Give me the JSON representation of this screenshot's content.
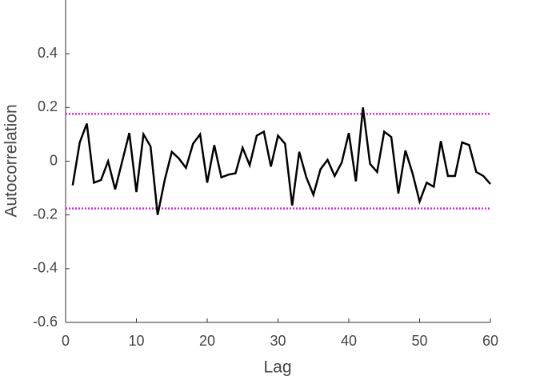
{
  "chart_data": {
    "type": "line",
    "xlabel": "Lag",
    "ylabel": "Autocorrelation",
    "x": [
      1,
      2,
      3,
      4,
      5,
      6,
      7,
      8,
      9,
      10,
      11,
      12,
      13,
      14,
      15,
      16,
      17,
      18,
      19,
      20,
      21,
      22,
      23,
      24,
      25,
      26,
      27,
      28,
      29,
      30,
      31,
      32,
      33,
      34,
      35,
      36,
      37,
      38,
      39,
      40,
      41,
      42,
      43,
      44,
      45,
      46,
      47,
      48,
      49,
      50,
      51,
      52,
      53,
      54,
      55,
      56,
      57,
      58,
      59,
      60
    ],
    "series": [
      {
        "color": "#000000",
        "values": [
          -0.09,
          0.07,
          0.14,
          -0.08,
          -0.07,
          0.0,
          -0.105,
          0.0,
          0.105,
          -0.115,
          0.1,
          0.055,
          -0.2,
          -0.07,
          0.035,
          0.01,
          -0.025,
          0.065,
          0.1,
          -0.08,
          0.06,
          -0.06,
          -0.05,
          -0.045,
          0.05,
          -0.015,
          0.095,
          0.11,
          -0.02,
          0.095,
          0.065,
          -0.165,
          0.035,
          -0.06,
          -0.125,
          -0.03,
          0.005,
          -0.055,
          -0.005,
          0.105,
          -0.075,
          0.2,
          -0.01,
          -0.04,
          0.11,
          0.09,
          -0.12,
          0.04,
          -0.045,
          -0.15,
          -0.08,
          -0.095,
          0.075,
          -0.055,
          -0.055,
          0.07,
          0.06,
          -0.04,
          -0.055,
          -0.085
        ]
      }
    ],
    "reference_lines": [
      {
        "value": 0.176,
        "color": "#e020e0"
      },
      {
        "value": -0.176,
        "color": "#e020e0"
      }
    ],
    "xlim": [
      0,
      60
    ],
    "xticks": [
      0,
      10,
      20,
      30,
      40,
      50,
      60
    ],
    "ylim": [
      -0.6,
      0.6
    ],
    "yticks": [
      -0.6,
      -0.4,
      -0.2,
      0,
      0.2,
      0.4
    ]
  }
}
